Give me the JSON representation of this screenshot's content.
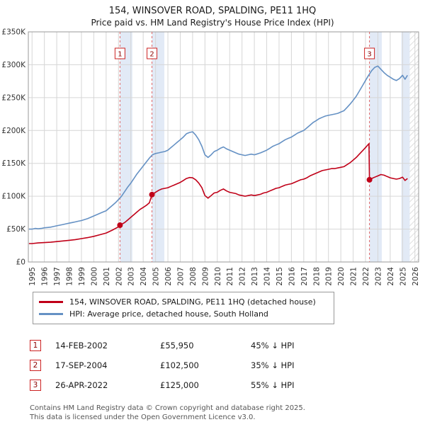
{
  "title": "154, WINSOVER ROAD, SPALDING, PE11 1HQ",
  "subtitle": "Price paid vs. HM Land Registry's House Price Index (HPI)",
  "chart_data": {
    "type": "line",
    "title": "Price paid vs. HM Land Registry's House Price Index (HPI)",
    "xlabel": "",
    "ylabel": "",
    "x_range": [
      1994.7,
      2026.3
    ],
    "y_range": [
      0,
      350000
    ],
    "y_step": 50000,
    "y_ticks": [
      "£0",
      "£50K",
      "£100K",
      "£150K",
      "£200K",
      "£250K",
      "£300K",
      "£350K"
    ],
    "x_ticks": [
      1995,
      1996,
      1997,
      1998,
      1999,
      2000,
      2001,
      2002,
      2003,
      2004,
      2005,
      2006,
      2007,
      2008,
      2009,
      2010,
      2011,
      2012,
      2013,
      2014,
      2015,
      2016,
      2017,
      2018,
      2019,
      2020,
      2021,
      2022,
      2023,
      2024,
      2025,
      2026
    ],
    "grid": true,
    "legend_position": "below",
    "band_color": "#e2eaf6",
    "hatch_color": "#c8c8c8",
    "marker_line_color": "#e06666",
    "bands": [
      [
        2002.12,
        2003.12
      ],
      [
        2004.71,
        2005.71
      ],
      [
        2022.32,
        2023.32
      ],
      [
        2024.9,
        2025.58
      ]
    ],
    "hatch_span": [
      2025.58,
      2026.3
    ],
    "markers": [
      {
        "label": "1",
        "x": 2002.12,
        "y": 55950
      },
      {
        "label": "2",
        "x": 2004.71,
        "y": 102500
      },
      {
        "label": "3",
        "x": 2022.32,
        "y": 125000
      }
    ],
    "series": [
      {
        "name": "154, WINSOVER ROAD, SPALDING, PE11 1HQ (detached house)",
        "color": "#c00018",
        "points": [
          [
            1994.75,
            28000
          ],
          [
            1995,
            28000
          ],
          [
            1995.5,
            29000
          ],
          [
            1996,
            29500
          ],
          [
            1996.5,
            30000
          ],
          [
            1997,
            31000
          ],
          [
            1997.5,
            32000
          ],
          [
            1998,
            33000
          ],
          [
            1998.5,
            34000
          ],
          [
            1999,
            35500
          ],
          [
            1999.5,
            37000
          ],
          [
            2000,
            39000
          ],
          [
            2000.5,
            41500
          ],
          [
            2001,
            44000
          ],
          [
            2001.5,
            48500
          ],
          [
            2002,
            53500
          ],
          [
            2002.12,
            55950
          ],
          [
            2002.5,
            60000
          ],
          [
            2002.75,
            64000
          ],
          [
            2003,
            68000
          ],
          [
            2003.25,
            72000
          ],
          [
            2003.5,
            76000
          ],
          [
            2003.75,
            80000
          ],
          [
            2004,
            83000
          ],
          [
            2004.25,
            86000
          ],
          [
            2004.5,
            90000
          ],
          [
            2004.71,
            102500
          ],
          [
            2005,
            106000
          ],
          [
            2005.25,
            109000
          ],
          [
            2005.5,
            111000
          ],
          [
            2005.75,
            112000
          ],
          [
            2006,
            113000
          ],
          [
            2006.25,
            115000
          ],
          [
            2006.5,
            117000
          ],
          [
            2006.75,
            119000
          ],
          [
            2007,
            121000
          ],
          [
            2007.25,
            124000
          ],
          [
            2007.5,
            127000
          ],
          [
            2007.75,
            128500
          ],
          [
            2008,
            128000
          ],
          [
            2008.25,
            125000
          ],
          [
            2008.5,
            120000
          ],
          [
            2008.75,
            113000
          ],
          [
            2009,
            101000
          ],
          [
            2009.25,
            97000
          ],
          [
            2009.5,
            101000
          ],
          [
            2009.75,
            105000
          ],
          [
            2010,
            106000
          ],
          [
            2010.25,
            109000
          ],
          [
            2010.5,
            111000
          ],
          [
            2010.75,
            108000
          ],
          [
            2011,
            106000
          ],
          [
            2011.25,
            105000
          ],
          [
            2011.5,
            104000
          ],
          [
            2011.75,
            102000
          ],
          [
            2012,
            101000
          ],
          [
            2012.25,
            100000
          ],
          [
            2012.5,
            101000
          ],
          [
            2012.75,
            102000
          ],
          [
            2013,
            101000
          ],
          [
            2013.25,
            102000
          ],
          [
            2013.5,
            103000
          ],
          [
            2013.75,
            105000
          ],
          [
            2014,
            106000
          ],
          [
            2014.25,
            108000
          ],
          [
            2014.5,
            110000
          ],
          [
            2014.75,
            112000
          ],
          [
            2015,
            113000
          ],
          [
            2015.25,
            115000
          ],
          [
            2015.5,
            117000
          ],
          [
            2015.75,
            118000
          ],
          [
            2016,
            119000
          ],
          [
            2016.25,
            121000
          ],
          [
            2016.5,
            123000
          ],
          [
            2016.75,
            125000
          ],
          [
            2017,
            126000
          ],
          [
            2017.25,
            128000
          ],
          [
            2017.5,
            131000
          ],
          [
            2017.75,
            133000
          ],
          [
            2018,
            135000
          ],
          [
            2018.25,
            137000
          ],
          [
            2018.5,
            139000
          ],
          [
            2018.75,
            140000
          ],
          [
            2019,
            141000
          ],
          [
            2019.25,
            142000
          ],
          [
            2019.5,
            142000
          ],
          [
            2019.75,
            143000
          ],
          [
            2020,
            144000
          ],
          [
            2020.25,
            145000
          ],
          [
            2020.5,
            148000
          ],
          [
            2020.75,
            151000
          ],
          [
            2021,
            155000
          ],
          [
            2021.25,
            159000
          ],
          [
            2021.5,
            164000
          ],
          [
            2021.75,
            169000
          ],
          [
            2022,
            174000
          ],
          [
            2022.28,
            180000
          ],
          [
            2022.32,
            125000
          ],
          [
            2022.5,
            127000
          ],
          [
            2022.75,
            129000
          ],
          [
            2023,
            131000
          ],
          [
            2023.25,
            133000
          ],
          [
            2023.5,
            132000
          ],
          [
            2023.75,
            130000
          ],
          [
            2024,
            128000
          ],
          [
            2024.25,
            127000
          ],
          [
            2024.5,
            126000
          ],
          [
            2024.75,
            127000
          ],
          [
            2025,
            129000
          ],
          [
            2025.2,
            124000
          ],
          [
            2025.4,
            127000
          ]
        ]
      },
      {
        "name": "HPI: Average price, detached house, South Holland",
        "color": "#6591c4",
        "points": [
          [
            1994.75,
            50000
          ],
          [
            1995,
            50000
          ],
          [
            1995.25,
            51000
          ],
          [
            1995.5,
            50500
          ],
          [
            1995.75,
            51000
          ],
          [
            1996,
            52000
          ],
          [
            1996.25,
            52500
          ],
          [
            1996.5,
            53000
          ],
          [
            1996.75,
            54000
          ],
          [
            1997,
            55000
          ],
          [
            1997.25,
            56000
          ],
          [
            1997.5,
            57000
          ],
          [
            1997.75,
            58000
          ],
          [
            1998,
            59000
          ],
          [
            1998.25,
            60000
          ],
          [
            1998.5,
            61000
          ],
          [
            1998.75,
            62000
          ],
          [
            1999,
            63000
          ],
          [
            1999.25,
            64500
          ],
          [
            1999.5,
            66000
          ],
          [
            1999.75,
            68000
          ],
          [
            2000,
            70000
          ],
          [
            2000.25,
            72000
          ],
          [
            2000.5,
            74000
          ],
          [
            2000.75,
            76000
          ],
          [
            2001,
            78000
          ],
          [
            2001.25,
            82000
          ],
          [
            2001.5,
            86000
          ],
          [
            2001.75,
            90000
          ],
          [
            2002,
            95000
          ],
          [
            2002.25,
            100000
          ],
          [
            2002.5,
            107000
          ],
          [
            2002.75,
            114000
          ],
          [
            2003,
            120000
          ],
          [
            2003.25,
            127000
          ],
          [
            2003.5,
            134000
          ],
          [
            2003.75,
            140000
          ],
          [
            2004,
            146000
          ],
          [
            2004.25,
            152000
          ],
          [
            2004.5,
            158000
          ],
          [
            2004.75,
            163000
          ],
          [
            2005,
            165000
          ],
          [
            2005.25,
            166000
          ],
          [
            2005.5,
            167000
          ],
          [
            2005.75,
            168000
          ],
          [
            2006,
            170000
          ],
          [
            2006.25,
            174000
          ],
          [
            2006.5,
            178000
          ],
          [
            2006.75,
            182000
          ],
          [
            2007,
            186000
          ],
          [
            2007.25,
            190000
          ],
          [
            2007.5,
            195000
          ],
          [
            2007.75,
            197000
          ],
          [
            2008,
            198000
          ],
          [
            2008.25,
            193000
          ],
          [
            2008.5,
            186000
          ],
          [
            2008.75,
            176000
          ],
          [
            2009,
            163000
          ],
          [
            2009.25,
            159000
          ],
          [
            2009.5,
            163000
          ],
          [
            2009.75,
            168000
          ],
          [
            2010,
            170000
          ],
          [
            2010.25,
            173000
          ],
          [
            2010.5,
            175000
          ],
          [
            2010.75,
            172000
          ],
          [
            2011,
            170000
          ],
          [
            2011.25,
            168000
          ],
          [
            2011.5,
            166000
          ],
          [
            2011.75,
            164000
          ],
          [
            2012,
            163000
          ],
          [
            2012.25,
            162000
          ],
          [
            2012.5,
            163000
          ],
          [
            2012.75,
            164000
          ],
          [
            2013,
            163000
          ],
          [
            2013.25,
            164500
          ],
          [
            2013.5,
            166000
          ],
          [
            2013.75,
            168000
          ],
          [
            2014,
            170000
          ],
          [
            2014.25,
            173000
          ],
          [
            2014.5,
            176000
          ],
          [
            2014.75,
            178000
          ],
          [
            2015,
            180000
          ],
          [
            2015.25,
            183000
          ],
          [
            2015.5,
            186000
          ],
          [
            2015.75,
            188000
          ],
          [
            2016,
            190000
          ],
          [
            2016.25,
            193000
          ],
          [
            2016.5,
            196000
          ],
          [
            2016.75,
            198000
          ],
          [
            2017,
            200000
          ],
          [
            2017.25,
            204000
          ],
          [
            2017.5,
            208000
          ],
          [
            2017.75,
            212000
          ],
          [
            2018,
            215000
          ],
          [
            2018.25,
            218000
          ],
          [
            2018.5,
            220000
          ],
          [
            2018.75,
            222000
          ],
          [
            2019,
            223000
          ],
          [
            2019.25,
            224000
          ],
          [
            2019.5,
            225000
          ],
          [
            2019.75,
            226000
          ],
          [
            2020,
            228000
          ],
          [
            2020.25,
            230000
          ],
          [
            2020.5,
            235000
          ],
          [
            2020.75,
            240000
          ],
          [
            2021,
            246000
          ],
          [
            2021.25,
            252000
          ],
          [
            2021.5,
            260000
          ],
          [
            2021.75,
            268000
          ],
          [
            2022,
            276000
          ],
          [
            2022.25,
            284000
          ],
          [
            2022.5,
            291000
          ],
          [
            2022.75,
            296000
          ],
          [
            2023,
            298000
          ],
          [
            2023.25,
            293000
          ],
          [
            2023.5,
            288000
          ],
          [
            2023.75,
            284000
          ],
          [
            2024,
            281000
          ],
          [
            2024.25,
            278000
          ],
          [
            2024.5,
            276000
          ],
          [
            2024.75,
            279000
          ],
          [
            2025,
            284000
          ],
          [
            2025.2,
            278000
          ],
          [
            2025.4,
            284000
          ]
        ]
      }
    ]
  },
  "transactions": [
    {
      "num": "1",
      "date": "14-FEB-2002",
      "price": "£55,950",
      "hpi": "45% ↓ HPI"
    },
    {
      "num": "2",
      "date": "17-SEP-2004",
      "price": "£102,500",
      "hpi": "35% ↓ HPI"
    },
    {
      "num": "3",
      "date": "26-APR-2022",
      "price": "£125,000",
      "hpi": "55% ↓ HPI"
    }
  ],
  "footer": {
    "line1": "Contains HM Land Registry data © Crown copyright and database right 2025.",
    "line2": "This data is licensed under the Open Government Licence v3.0."
  }
}
